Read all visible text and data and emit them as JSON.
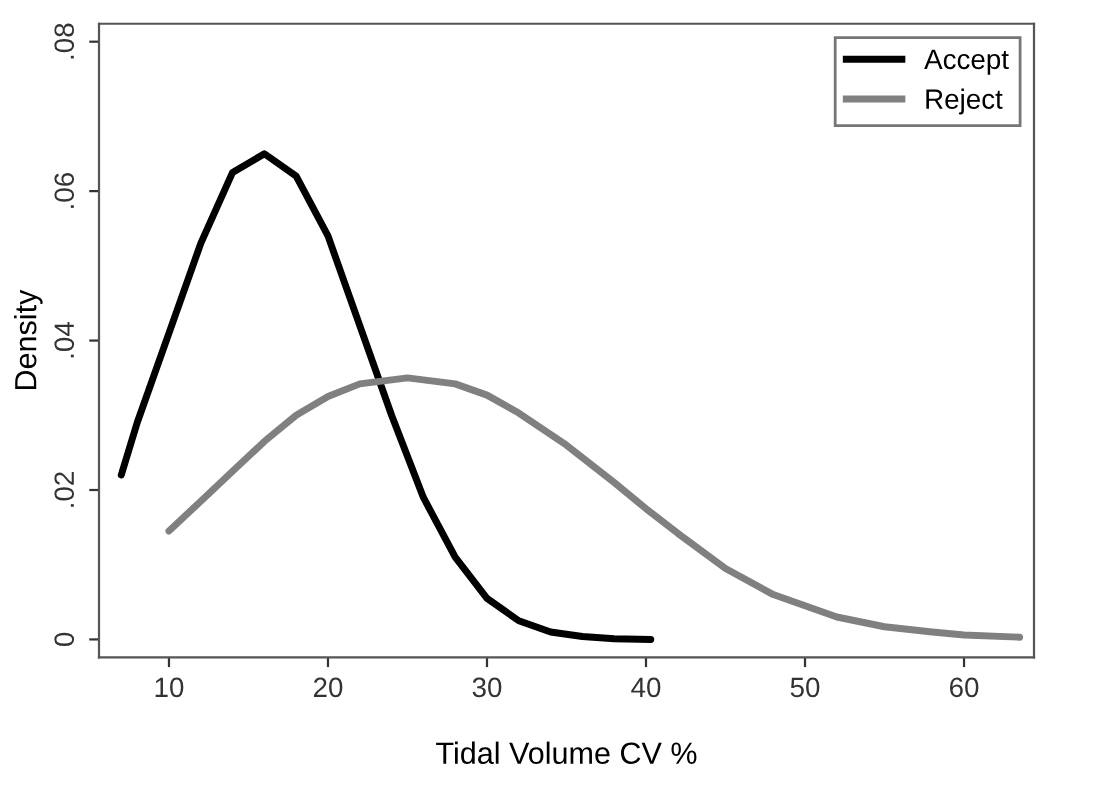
{
  "chart_data": {
    "type": "line",
    "xlabel": "Tidal Volume CV %",
    "ylabel": "Density",
    "xlim": [
      5.6,
      64.4
    ],
    "xticks": [
      10,
      20,
      30,
      40,
      50,
      60
    ],
    "ylim": [
      -0.0024,
      0.0824
    ],
    "yticks": [
      {
        "value": 0,
        "label": "0"
      },
      {
        "value": 0.02,
        "label": ".02"
      },
      {
        "value": 0.04,
        "label": ".04"
      },
      {
        "value": 0.06,
        "label": ".06"
      },
      {
        "value": 0.08,
        "label": ".08"
      }
    ],
    "grid": false,
    "legend": "top right",
    "marker": "none",
    "line_style": "solid",
    "series": [
      {
        "name": "Accept",
        "color": "#000000",
        "x": [
          7,
          8,
          10,
          12,
          14,
          16,
          18,
          20,
          22,
          24,
          26,
          28,
          30,
          32,
          34,
          36,
          38,
          40.3
        ],
        "values": [
          0.022,
          0.029,
          0.041,
          0.053,
          0.0625,
          0.065,
          0.062,
          0.054,
          0.042,
          0.03,
          0.019,
          0.011,
          0.0055,
          0.0025,
          0.001,
          0.0004,
          0.0001,
          0.0
        ]
      },
      {
        "name": "Reject",
        "color": "#808080",
        "x": [
          10,
          12,
          14,
          16,
          18,
          20,
          22,
          25,
          28,
          30,
          32,
          35,
          38,
          40,
          42,
          45,
          48,
          50,
          52,
          55,
          58,
          60,
          63.5
        ],
        "values": [
          0.0145,
          0.0185,
          0.0225,
          0.0265,
          0.03,
          0.0325,
          0.0342,
          0.035,
          0.0342,
          0.0327,
          0.0303,
          0.026,
          0.021,
          0.0175,
          0.0142,
          0.0095,
          0.006,
          0.0045,
          0.003,
          0.0017,
          0.001,
          0.0006,
          0.0003
        ]
      }
    ]
  }
}
